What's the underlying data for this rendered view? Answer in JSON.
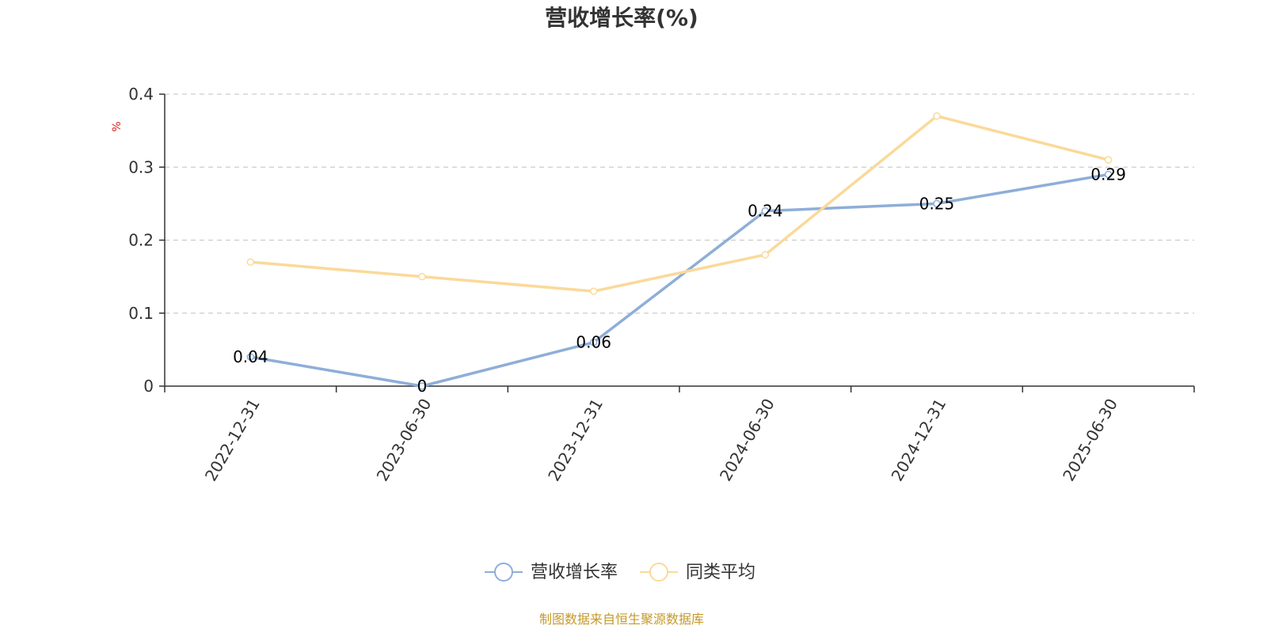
{
  "chart_data": {
    "type": "line",
    "title": "营收增长率(%)",
    "ylabel": "%",
    "categories": [
      "2022-12-31",
      "2023-06-30",
      "2023-12-31",
      "2024-06-30",
      "2024-12-31",
      "2025-06-30"
    ],
    "yticks": [
      "0",
      "0.1",
      "0.2",
      "0.3",
      "0.4"
    ],
    "ylim": [
      0,
      0.4
    ],
    "grid": true,
    "legend_position": "bottom-center",
    "series": [
      {
        "name": "营收增长率",
        "values": [
          0.04,
          0,
          0.06,
          0.24,
          0.25,
          0.29
        ],
        "labels": [
          "0.04",
          "0",
          "0.06",
          "0.24",
          "0.25",
          "0.29"
        ],
        "color": "#8eaed8"
      },
      {
        "name": "同类平均",
        "values": [
          0.17,
          0.15,
          0.13,
          0.18,
          0.37,
          0.31
        ],
        "color": "#fbd99a"
      }
    ],
    "unit_color": "#e02020"
  },
  "source_note": "制图数据来自恒生聚源数据库",
  "source_color": "#c49a2a"
}
